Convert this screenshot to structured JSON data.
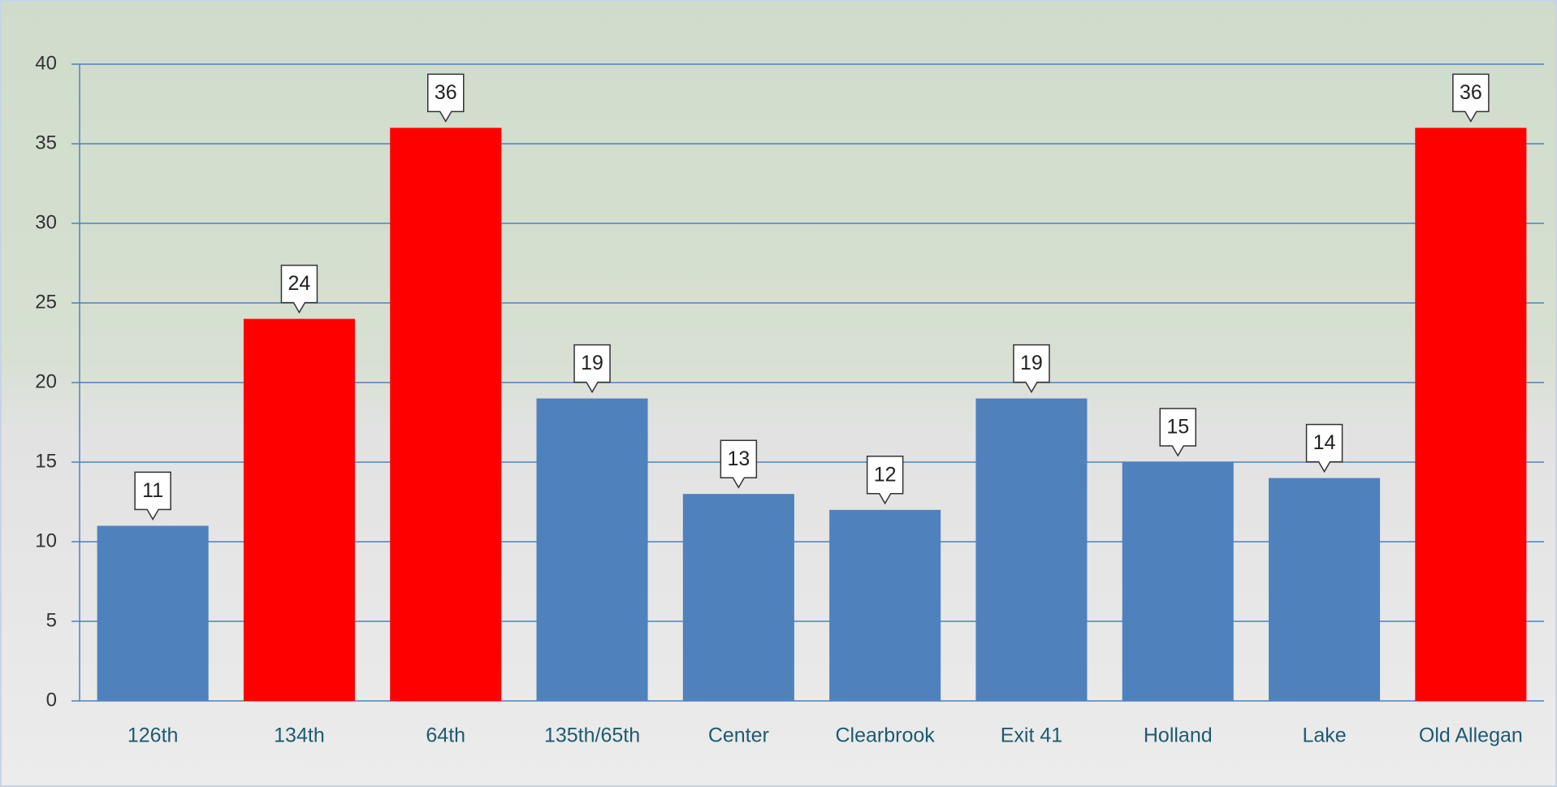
{
  "chart_data": {
    "type": "bar",
    "categories": [
      "126th",
      "134th",
      "64th",
      "135th/65th",
      "Center",
      "Clearbrook",
      "Exit 41",
      "Holland",
      "Lake",
      "Old Allegan"
    ],
    "values": [
      11,
      24,
      36,
      19,
      13,
      12,
      19,
      15,
      14,
      36
    ],
    "colors": [
      "#4f81bd",
      "#ff0000",
      "#ff0000",
      "#4f81bd",
      "#4f81bd",
      "#4f81bd",
      "#4f81bd",
      "#4f81bd",
      "#4f81bd",
      "#ff0000"
    ],
    "ylim": [
      0,
      40
    ],
    "yticks": [
      0,
      5,
      10,
      15,
      20,
      25,
      30,
      35,
      40
    ],
    "grid": true
  }
}
